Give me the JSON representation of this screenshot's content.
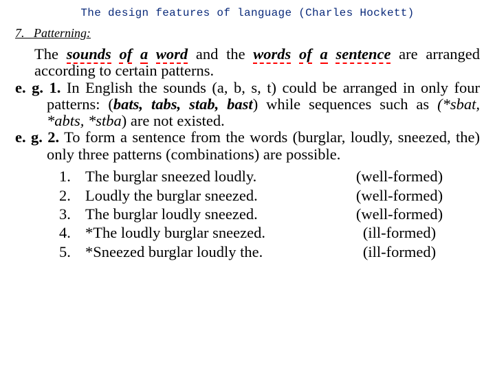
{
  "colors": {
    "header_text": "#0a2a7a",
    "body_text": "#000000",
    "background": "#ffffff",
    "dashed_underline": "#ff0000"
  },
  "typography": {
    "header_font": "Courier New, monospace",
    "body_font": "Times New Roman, serif",
    "header_fontsize_pt": 12,
    "body_fontsize_pt": 17,
    "section_fontsize_pt": 14
  },
  "header": "The design features of language (Charles Hockett)",
  "section_number": "7.",
  "section_title": "Patterning:",
  "intro": {
    "t1": "The ",
    "sounds": "sounds",
    "sp1": " ",
    "of1": "of",
    "sp2": " ",
    "a1": "a",
    "sp3": " ",
    "word": "word",
    "t2": " and the ",
    "words": "words",
    "sp4": " ",
    "of2": "of",
    "sp5": " ",
    "a2": "a",
    "sp6": " ",
    "sentence": "sentence",
    "t3": " are arranged according to certain patterns."
  },
  "eg1": {
    "label": "e. g. 1.",
    "t1": "   In English the sounds (a, b, s, t) could be arranged in only four patterns: (",
    "valid": "bats, tabs, stab, bast",
    "t2": ") while sequences such as ",
    "invalid": "(*sbat, *abts, *stba",
    "t3": ") are not existed."
  },
  "eg2": {
    "label": "e. g. 2.",
    "t1": " To form a sentence from the words (burglar, loudly, sneezed, the) only three patterns (combinations) are possible."
  },
  "sublist": [
    {
      "num": "1.",
      "text": "The burglar sneezed loudly.",
      "status": "(well-formed)"
    },
    {
      "num": "2.",
      "text": "Loudly the burglar sneezed.",
      "status": "(well-formed)"
    },
    {
      "num": "3.",
      "text": "The burglar loudly sneezed.",
      "status": "(well-formed)"
    },
    {
      "num": "4.",
      "text": "*The loudly burglar sneezed.",
      "status": "(ill-formed)"
    },
    {
      "num": "5.",
      "text": "*Sneezed burglar loudly the.",
      "status": "(ill-formed)"
    }
  ]
}
